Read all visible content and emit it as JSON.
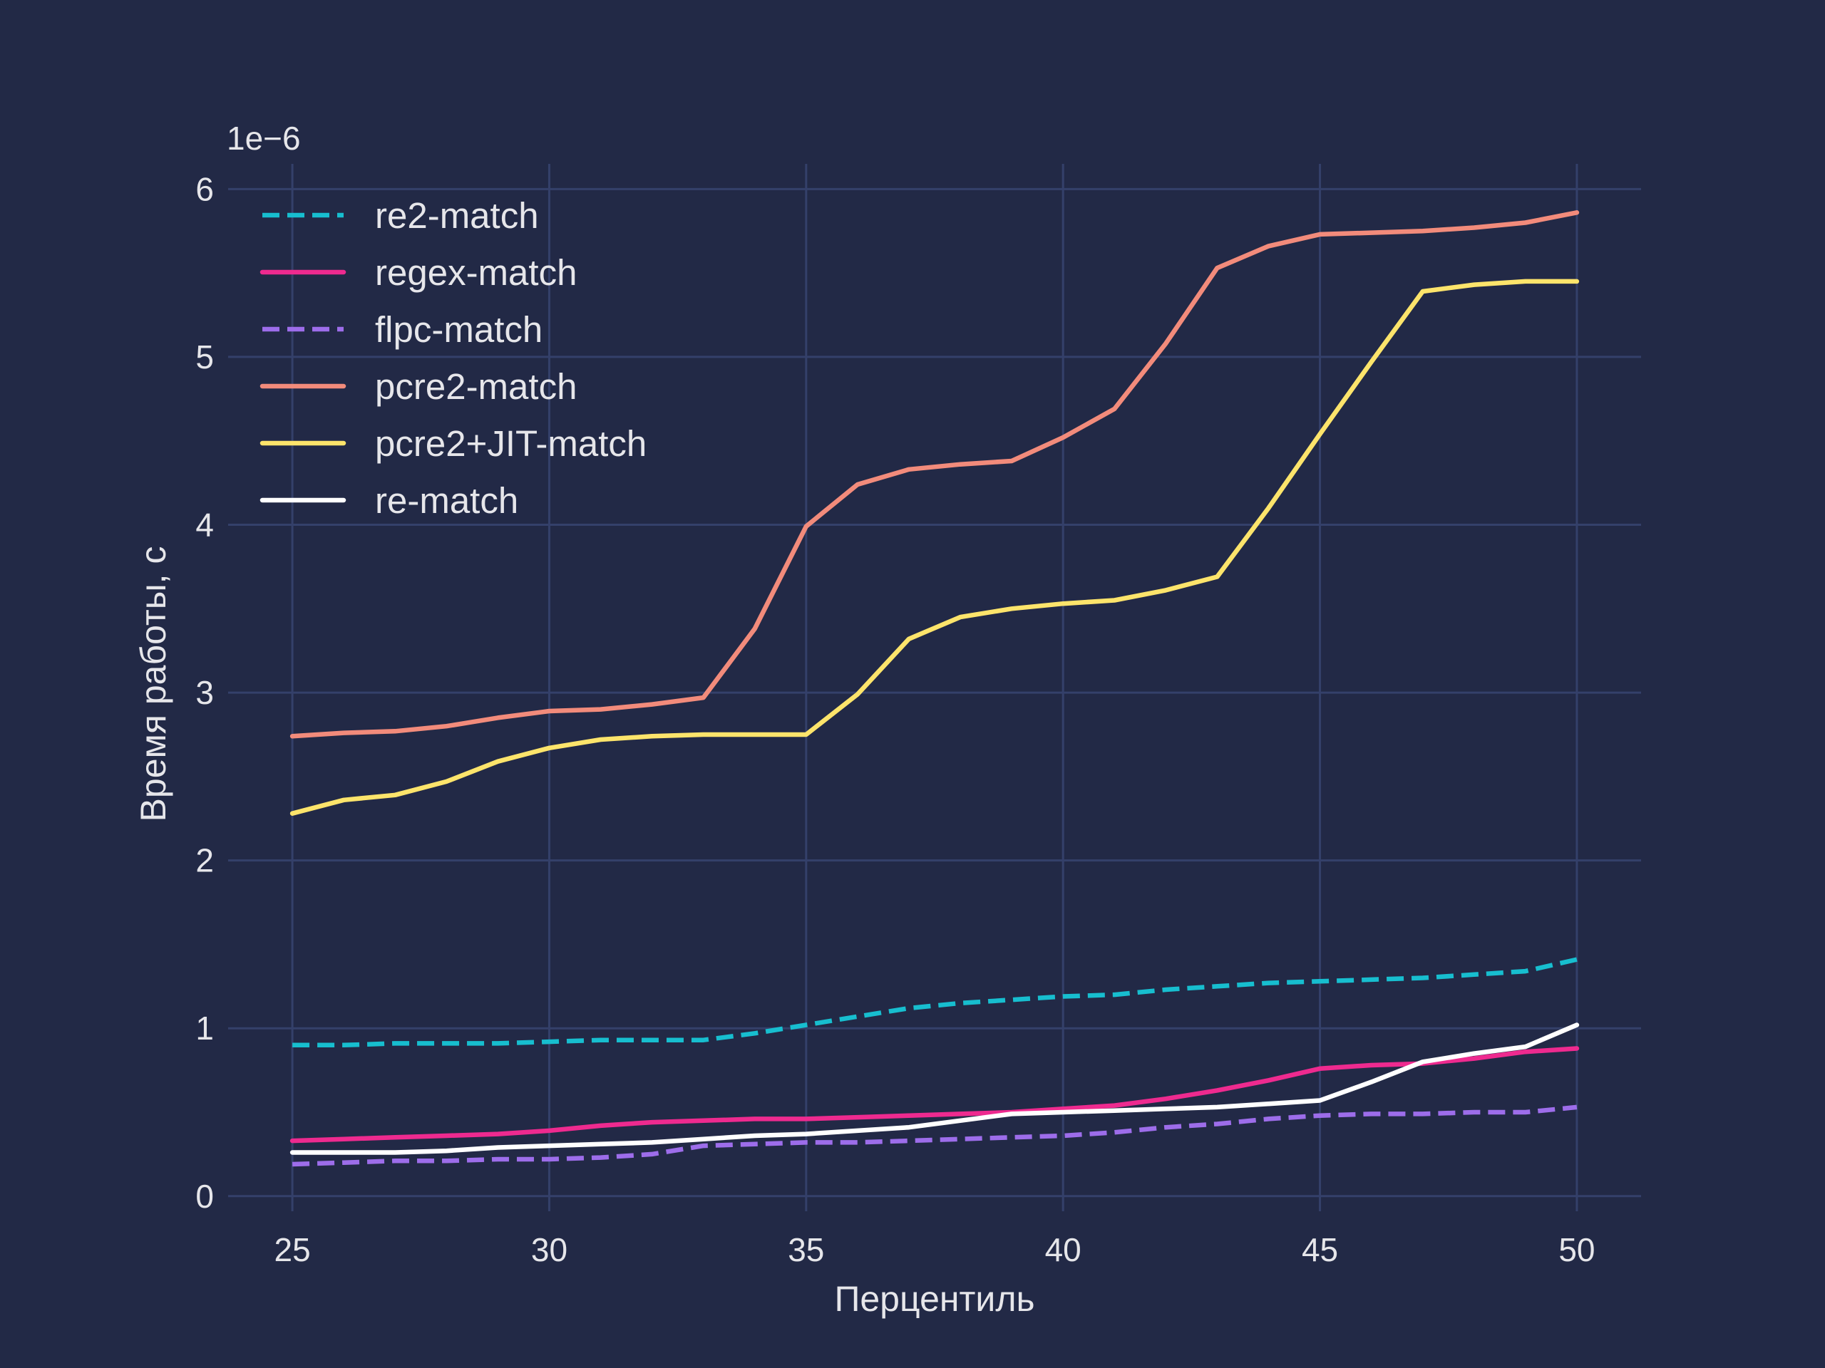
{
  "chart_data": {
    "type": "line",
    "xlabel": "Перцентиль",
    "ylabel": "Время работы, с",
    "y_scale_label": "1e−6",
    "xlim": [
      23.75,
      51.25
    ],
    "ylim": [
      -0.09,
      6.15
    ],
    "x_ticks": [
      25,
      30,
      35,
      40,
      45,
      50
    ],
    "y_ticks": [
      0,
      1,
      2,
      3,
      4,
      5,
      6
    ],
    "grid": true,
    "legend_position": "top-left",
    "x": [
      25,
      26,
      27,
      28,
      29,
      30,
      31,
      32,
      33,
      34,
      35,
      36,
      37,
      38,
      39,
      40,
      41,
      42,
      43,
      44,
      45,
      46,
      47,
      48,
      49,
      50
    ],
    "series": [
      {
        "name": "re2-match",
        "color": "#17becf",
        "dashed": true,
        "values": [
          0.9,
          0.9,
          0.91,
          0.91,
          0.91,
          0.92,
          0.93,
          0.93,
          0.93,
          0.97,
          1.02,
          1.07,
          1.12,
          1.15,
          1.17,
          1.19,
          1.2,
          1.23,
          1.25,
          1.27,
          1.28,
          1.29,
          1.3,
          1.32,
          1.34,
          1.41
        ]
      },
      {
        "name": "regex-match",
        "color": "#ee2a8f",
        "dashed": false,
        "values": [
          0.33,
          0.34,
          0.35,
          0.36,
          0.37,
          0.39,
          0.42,
          0.44,
          0.45,
          0.46,
          0.46,
          0.47,
          0.48,
          0.49,
          0.5,
          0.52,
          0.54,
          0.58,
          0.63,
          0.69,
          0.76,
          0.78,
          0.79,
          0.82,
          0.86,
          0.88
        ]
      },
      {
        "name": "flpc-match",
        "color": "#9d6dea",
        "dashed": true,
        "values": [
          0.19,
          0.2,
          0.21,
          0.21,
          0.22,
          0.22,
          0.23,
          0.25,
          0.3,
          0.31,
          0.32,
          0.32,
          0.33,
          0.34,
          0.35,
          0.36,
          0.38,
          0.41,
          0.43,
          0.46,
          0.48,
          0.49,
          0.49,
          0.5,
          0.5,
          0.53
        ]
      },
      {
        "name": "pcre2-match",
        "color": "#f28b7b",
        "dashed": false,
        "values": [
          2.74,
          2.76,
          2.77,
          2.8,
          2.85,
          2.89,
          2.9,
          2.93,
          2.97,
          3.38,
          3.99,
          4.24,
          4.33,
          4.36,
          4.38,
          4.52,
          4.69,
          5.08,
          5.53,
          5.66,
          5.73,
          5.74,
          5.75,
          5.77,
          5.8,
          5.86
        ]
      },
      {
        "name": "pcre2+JIT-match",
        "color": "#fde46b",
        "dashed": false,
        "values": [
          2.28,
          2.36,
          2.39,
          2.47,
          2.59,
          2.67,
          2.72,
          2.74,
          2.75,
          2.75,
          2.75,
          2.99,
          3.32,
          3.45,
          3.5,
          3.53,
          3.55,
          3.61,
          3.69,
          4.1,
          4.54,
          4.97,
          5.39,
          5.43,
          5.45,
          5.45
        ]
      },
      {
        "name": "re-match",
        "color": "#ffffff",
        "dashed": false,
        "values": [
          0.26,
          0.26,
          0.26,
          0.27,
          0.29,
          0.3,
          0.31,
          0.32,
          0.34,
          0.36,
          0.37,
          0.39,
          0.41,
          0.45,
          0.49,
          0.5,
          0.51,
          0.52,
          0.53,
          0.55,
          0.57,
          0.68,
          0.8,
          0.85,
          0.89,
          1.02
        ]
      }
    ]
  }
}
